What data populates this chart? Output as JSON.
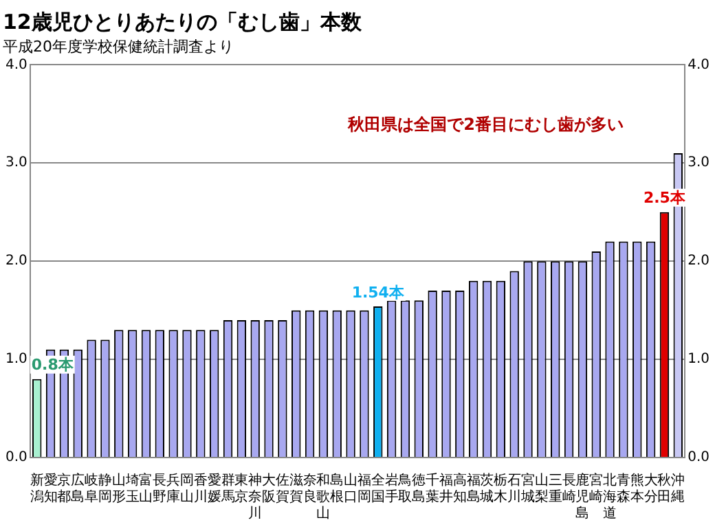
{
  "chart_data": {
    "type": "bar",
    "title": "12歳児ひとりあたりの「むし歯」本数",
    "subtitle": "平成20年度学校保健統計調査より",
    "categories": [
      "新潟",
      "愛知",
      "京都",
      "広島",
      "岐阜",
      "静岡",
      "山形",
      "埼玉",
      "富山",
      "長野",
      "兵庫",
      "岡山",
      "香川",
      "愛媛",
      "群馬",
      "東京",
      "神奈川",
      "大阪",
      "佐賀",
      "滋賀",
      "奈良",
      "和歌山",
      "島根",
      "山口",
      "福岡",
      "全国",
      "岩手",
      "鳥取",
      "徳島",
      "千葉",
      "福井",
      "高知",
      "福島",
      "茨城",
      "栃木",
      "石川",
      "宮城",
      "山梨",
      "三重",
      "長崎",
      "鹿児島",
      "宮崎",
      "北海道",
      "青森",
      "熊本",
      "大分",
      "秋田",
      "沖縄"
    ],
    "values": [
      0.8,
      1.1,
      1.1,
      1.1,
      1.2,
      1.2,
      1.3,
      1.3,
      1.3,
      1.3,
      1.3,
      1.3,
      1.3,
      1.3,
      1.4,
      1.4,
      1.4,
      1.4,
      1.4,
      1.5,
      1.5,
      1.5,
      1.5,
      1.5,
      1.5,
      1.54,
      1.6,
      1.6,
      1.6,
      1.7,
      1.7,
      1.7,
      1.8,
      1.8,
      1.8,
      1.9,
      2.0,
      2.0,
      2.0,
      2.0,
      2.0,
      2.1,
      2.2,
      2.2,
      2.2,
      2.2,
      2.5,
      3.1
    ],
    "colors": [
      "#a8f0d0",
      "#a8a8f0",
      "#a8a8f0",
      "#a8a8f0",
      "#a8a8f0",
      "#a8a8f0",
      "#a8a8f0",
      "#a8a8f0",
      "#a8a8f0",
      "#a8a8f0",
      "#a8a8f0",
      "#a8a8f0",
      "#a8a8f0",
      "#a8a8f0",
      "#a8a8f0",
      "#a8a8f0",
      "#a8a8f0",
      "#a8a8f0",
      "#a8a8f0",
      "#a8a8f0",
      "#a8a8f0",
      "#a8a8f0",
      "#a8a8f0",
      "#a8a8f0",
      "#a8a8f0",
      "#10b0f0",
      "#a8a8f0",
      "#a8a8f0",
      "#a8a8f0",
      "#a8a8f0",
      "#a8a8f0",
      "#a8a8f0",
      "#a8a8f0",
      "#a8a8f0",
      "#a8a8f0",
      "#a8a8f0",
      "#a8a8f0",
      "#a8a8f0",
      "#a8a8f0",
      "#a8a8f0",
      "#a8a8f0",
      "#a8a8f0",
      "#a8a8f0",
      "#a8a8f0",
      "#a8a8f0",
      "#a8a8f0",
      "#e00000",
      "#c8c8f4"
    ],
    "value_labels": [
      "0.8本",
      null,
      null,
      null,
      null,
      null,
      null,
      null,
      null,
      null,
      null,
      null,
      null,
      null,
      null,
      null,
      null,
      null,
      null,
      null,
      null,
      null,
      null,
      null,
      null,
      "1.54本",
      null,
      null,
      null,
      null,
      null,
      null,
      null,
      null,
      null,
      null,
      null,
      null,
      null,
      null,
      null,
      null,
      null,
      null,
      null,
      null,
      "2.5本",
      null
    ],
    "ylim": [
      0,
      4
    ],
    "yticks": [
      {
        "value": 0,
        "label": "0.0"
      },
      {
        "value": 1,
        "label": "1.0"
      },
      {
        "value": 2,
        "label": "2.0"
      },
      {
        "value": 3,
        "label": "3.0"
      },
      {
        "value": 4,
        "label": "4.0"
      }
    ],
    "y2lim": [
      0,
      4
    ],
    "y2ticks": [
      {
        "value": 0,
        "label": "0.0"
      },
      {
        "value": 1,
        "label": "1.0"
      },
      {
        "value": 2,
        "label": "2.0"
      },
      {
        "value": 3,
        "label": "3.0"
      },
      {
        "value": 4,
        "label": "4.0"
      }
    ],
    "grid": "y",
    "legend": false,
    "annotations": [
      "秋田県は全国で2番目にむし歯が多い"
    ]
  }
}
